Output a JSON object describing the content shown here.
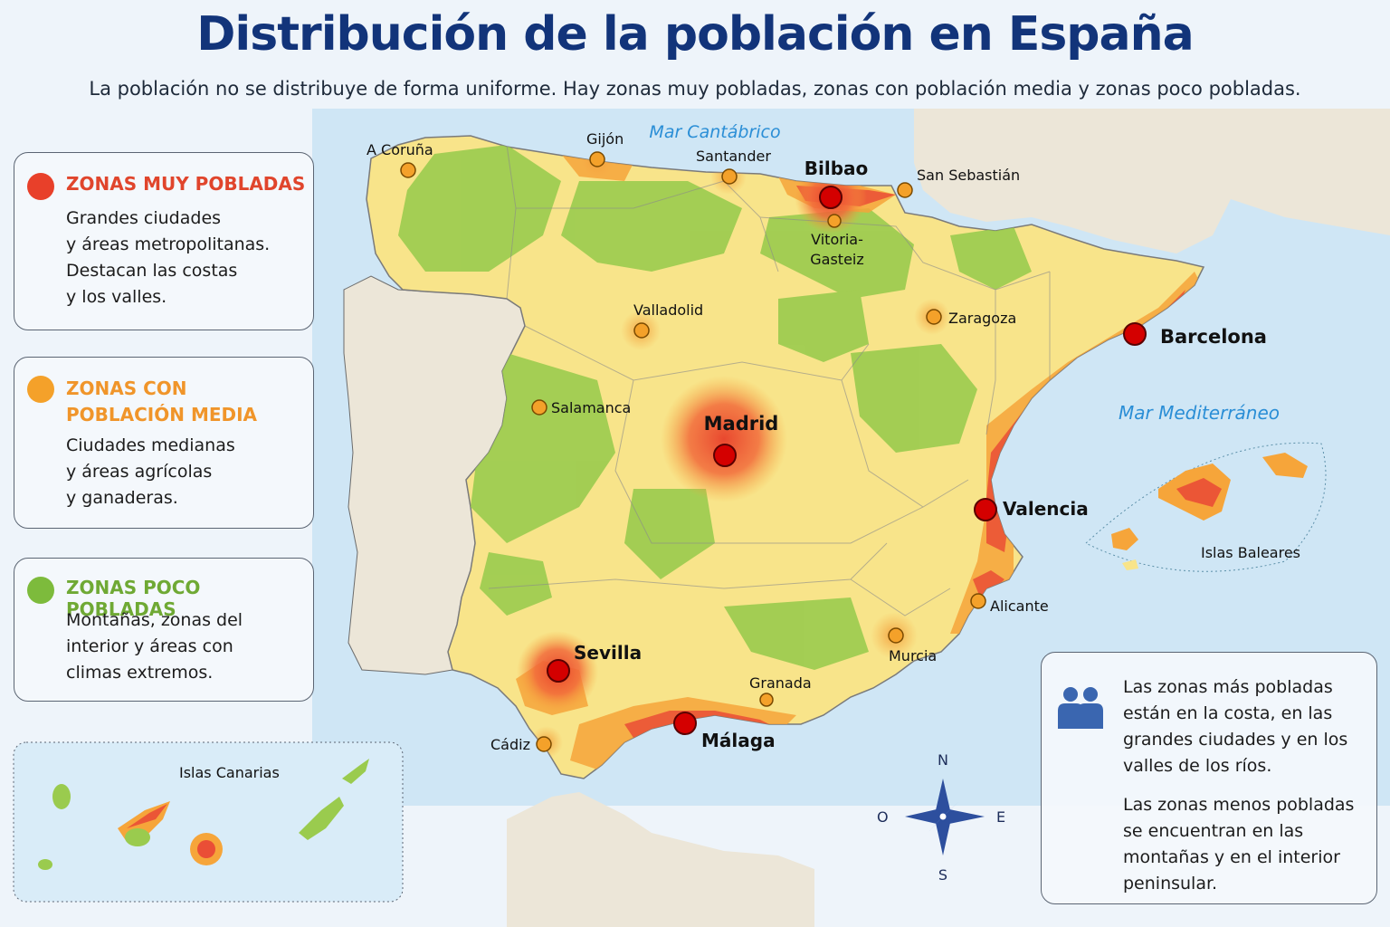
{
  "title": "Distribución de la población en España",
  "subtitle": "La población no se distribuye de forma uniforme. Hay zonas muy pobladas, zonas con población media y zonas poco pobladas.",
  "legend": [
    {
      "title": "ZONAS MUY POBLADAS",
      "text": "Grandes ciudades\ny áreas metropolitanas.\nDestacan las costas\ny los valles.",
      "color": "#e8402a"
    },
    {
      "title": "ZONAS CON\nPOBLACIÓN MEDIA",
      "text": "Ciudades medianas\ny áreas agrícolas\ny ganaderas.",
      "color": "#f4a12a"
    },
    {
      "title": "ZONAS POCO POBLADAS",
      "text": "Montañas, zonas del\ninterior y áreas con\nclimas extremos.",
      "color": "#7dbb3c"
    }
  ],
  "seas": {
    "cantabrico": "Mar Cantábrico",
    "mediterraneo": "Mar  Mediterráneo"
  },
  "major_cities": [
    "Bilbao",
    "Barcelona",
    "Madrid",
    "Valencia",
    "Sevilla",
    "Málaga"
  ],
  "medium_cities": [
    "A Coruña",
    "Gijón",
    "Santander",
    "San Sebastián",
    "Vitoria-\nGasteiz",
    "Zaragoza",
    "Valladolid",
    "Salamanca",
    "Alicante",
    "Murcia",
    "Granada",
    "Cádiz"
  ],
  "islands": {
    "baleares": "Islas Baleares",
    "canarias": "Islas Canarias"
  },
  "compass": {
    "n": "N",
    "s": "S",
    "e": "E",
    "o": "O"
  },
  "info": {
    "p1": "Las zonas más pobladas\nestán en la costa, en las\ngrandes ciudades y en los\nvalles de los ríos.",
    "p2": "Las zonas menos pobladas\nse encuentran en las\nmontañas y en el interior\npeninsular.",
    "icon": "people-icon"
  },
  "colors": {
    "sea": "#cfe6f5",
    "land_other": "#ece6d8",
    "yellow": "#f8e48a",
    "green": "#9acb4e",
    "orange": "#f6a53a",
    "red": "#ea4e36",
    "text_title": "#12347a",
    "sea_label": "#2a8ed6"
  }
}
